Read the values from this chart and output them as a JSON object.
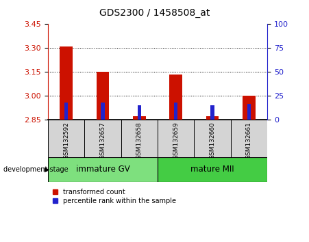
{
  "title": "GDS2300 / 1458508_at",
  "samples": [
    "GSM132592",
    "GSM132657",
    "GSM132658",
    "GSM132659",
    "GSM132660",
    "GSM132661"
  ],
  "transformed_counts": [
    3.31,
    3.15,
    2.875,
    3.135,
    2.875,
    3.0
  ],
  "percentile_ranks": [
    18,
    18,
    15,
    18,
    15,
    17
  ],
  "baseline": 2.85,
  "ylim_left": [
    2.85,
    3.45
  ],
  "yticks_left": [
    2.85,
    3.0,
    3.15,
    3.3,
    3.45
  ],
  "yticks_right": [
    0,
    25,
    50,
    75,
    100
  ],
  "ylim_right": [
    0,
    100
  ],
  "groups": [
    {
      "label": "immature GV",
      "samples": [
        0,
        1,
        2
      ],
      "color": "#7EE07E"
    },
    {
      "label": "mature MII",
      "samples": [
        3,
        4,
        5
      ],
      "color": "#44CC44"
    }
  ],
  "red_bar_width": 0.35,
  "blue_bar_width": 0.1,
  "red_color": "#CC1100",
  "blue_color": "#2222CC",
  "grid_color": "#000000",
  "sample_bg_color": "#D4D4D4",
  "left_axis_color": "#CC1100",
  "right_axis_color": "#2222CC",
  "group_label": "development stage",
  "legend_red": "transformed count",
  "legend_blue": "percentile rank within the sample",
  "plot_bg": "#FFFFFF"
}
